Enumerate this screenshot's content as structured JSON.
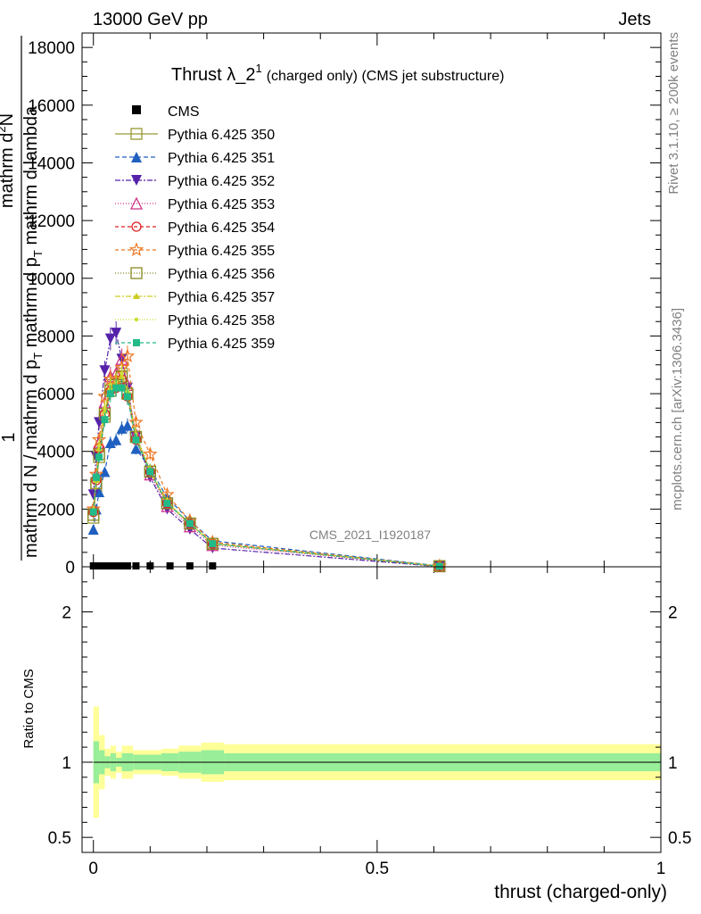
{
  "header": {
    "left": "13000 GeV pp",
    "right": "Jets"
  },
  "side_labels": {
    "rivet": "Rivet 3.1.10, ≥ 200k events",
    "mcplots": "mcplots.cern.ch [arXiv:1306.3436]"
  },
  "watermark": "CMS_2021_I1920187",
  "chart_data": [
    {
      "type": "line",
      "title": "Thrust λ_2",
      "title_sup": "1",
      "title_suffix": "(charged only) (CMS jet substructure)",
      "ylabel_parts": {
        "one": "1",
        "numerator_left": "mathrm d",
        "numerator_sup": "2",
        "numerator_right": "N",
        "denominator": "mathrm d N / mathrm d p",
        "denominator_sub": "T",
        "denominator_right": " mathrm d p",
        "denominator2_sub": "T",
        "denominator2_right": " mathrm d lambda"
      },
      "ylim": [
        0,
        18500
      ],
      "yticks": [
        0,
        2000,
        4000,
        6000,
        8000,
        10000,
        12000,
        14000,
        16000,
        18000
      ],
      "ytick_labels": [
        "0",
        "2000",
        "4000",
        "6000",
        "8000",
        "10000",
        "12000",
        "14000",
        "16000",
        "18000"
      ],
      "xlim": [
        -0.02,
        1.0
      ],
      "cms_points": {
        "x": [
          0.0,
          0.01,
          0.02,
          0.03,
          0.04,
          0.05,
          0.06,
          0.075,
          0.1,
          0.135,
          0.17,
          0.21
        ],
        "y": [
          0,
          0,
          0,
          0,
          0,
          0,
          0,
          0,
          0,
          0,
          0,
          0
        ]
      },
      "series": [
        {
          "name": "Pythia 6.425 350",
          "color": "#999933",
          "marker": "square-open",
          "dash": "",
          "x": [
            0.0,
            0.005,
            0.01,
            0.02,
            0.03,
            0.04,
            0.05,
            0.06,
            0.075,
            0.1,
            0.13,
            0.17,
            0.21,
            0.61
          ],
          "y": [
            1700,
            2800,
            3800,
            5200,
            6300,
            6400,
            6700,
            6000,
            4500,
            3300,
            2200,
            1500,
            800,
            20
          ]
        },
        {
          "name": "Pythia 6.425 351",
          "color": "#1f5fbf",
          "marker": "triangle-up",
          "dash": "5,3",
          "x": [
            0.0,
            0.005,
            0.01,
            0.02,
            0.03,
            0.04,
            0.05,
            0.06,
            0.075,
            0.1,
            0.13,
            0.17,
            0.21,
            0.61
          ],
          "y": [
            1300,
            2000,
            2600,
            3300,
            4300,
            4400,
            4800,
            4900,
            4100,
            3400,
            2400,
            1600,
            900,
            30
          ]
        },
        {
          "name": "Pythia 6.425 352",
          "color": "#5522aa",
          "marker": "triangle-down",
          "dash": "6,2,2,2",
          "x": [
            0.0,
            0.005,
            0.01,
            0.02,
            0.03,
            0.04,
            0.05,
            0.06,
            0.075,
            0.1,
            0.13,
            0.17,
            0.21,
            0.61
          ],
          "y": [
            2500,
            3800,
            5000,
            6800,
            7900,
            8100,
            7200,
            6200,
            4500,
            3100,
            2000,
            1300,
            650,
            10
          ]
        },
        {
          "name": "Pythia 6.425 353",
          "color": "#cc3388",
          "marker": "triangle-open",
          "dash": "1,2",
          "x": [
            0.0,
            0.005,
            0.01,
            0.02,
            0.03,
            0.04,
            0.05,
            0.06,
            0.075,
            0.1,
            0.13,
            0.17,
            0.21,
            0.61
          ],
          "y": [
            2000,
            3200,
            4300,
            5700,
            6600,
            6700,
            7200,
            6300,
            4600,
            3200,
            2100,
            1400,
            750,
            15
          ]
        },
        {
          "name": "Pythia 6.425 354",
          "color": "#dd2222",
          "marker": "circle-open",
          "dash": "4,3",
          "x": [
            0.0,
            0.005,
            0.01,
            0.02,
            0.03,
            0.04,
            0.05,
            0.06,
            0.075,
            0.1,
            0.13,
            0.17,
            0.21,
            0.61
          ],
          "y": [
            1900,
            3000,
            4100,
            5300,
            6100,
            6200,
            6500,
            5900,
            4400,
            3300,
            2200,
            1500,
            800,
            20
          ]
        },
        {
          "name": "Pythia 6.425 355",
          "color": "#ee7722",
          "marker": "star",
          "dash": "4,3",
          "x": [
            0.0,
            0.005,
            0.01,
            0.02,
            0.03,
            0.04,
            0.05,
            0.06,
            0.075,
            0.1,
            0.13,
            0.17,
            0.21,
            0.61
          ],
          "y": [
            2000,
            3200,
            4400,
            5900,
            6500,
            6500,
            6900,
            7300,
            5000,
            3900,
            2500,
            1600,
            850,
            25
          ]
        },
        {
          "name": "Pythia 6.425 356",
          "color": "#888822",
          "marker": "square-open",
          "dash": "1,2",
          "x": [
            0.0,
            0.005,
            0.01,
            0.02,
            0.03,
            0.04,
            0.05,
            0.06,
            0.075,
            0.1,
            0.13,
            0.17,
            0.21,
            0.61
          ],
          "y": [
            1800,
            2900,
            3900,
            5300,
            6100,
            6300,
            6600,
            6000,
            4500,
            3300,
            2200,
            1500,
            800,
            20
          ]
        },
        {
          "name": "Pythia 6.425 357",
          "color": "#cccc22",
          "marker": "tri-dot",
          "dash": "6,2,2,2",
          "x": [
            0.0,
            0.005,
            0.01,
            0.02,
            0.03,
            0.04,
            0.05,
            0.06,
            0.075,
            0.1,
            0.13,
            0.17,
            0.21,
            0.61
          ],
          "y": [
            1900,
            3000,
            4100,
            5400,
            6200,
            6300,
            6600,
            6100,
            4500,
            3300,
            2200,
            1500,
            800,
            20
          ]
        },
        {
          "name": "Pythia 6.425 358",
          "color": "#ccdd33",
          "marker": "dot",
          "dash": "1,2",
          "x": [
            0.0,
            0.005,
            0.01,
            0.02,
            0.03,
            0.04,
            0.05,
            0.06,
            0.075,
            0.1,
            0.13,
            0.17,
            0.21,
            0.61
          ],
          "y": [
            2000,
            3100,
            4200,
            5500,
            6300,
            6400,
            6700,
            6100,
            4600,
            3400,
            2300,
            1500,
            800,
            20
          ]
        },
        {
          "name": "Pythia 6.425 359",
          "color": "#22bb88",
          "marker": "square",
          "dash": "4,3",
          "x": [
            0.0,
            0.005,
            0.01,
            0.02,
            0.03,
            0.04,
            0.05,
            0.06,
            0.075,
            0.1,
            0.13,
            0.17,
            0.21,
            0.61
          ],
          "y": [
            1900,
            3100,
            3800,
            5100,
            6000,
            6200,
            6200,
            5900,
            4400,
            3300,
            2200,
            1500,
            800,
            20
          ]
        }
      ]
    },
    {
      "type": "area",
      "ylabel": "Ratio to CMS",
      "xlabel": "thrust (charged-only)",
      "ylim": [
        0.4,
        2.3
      ],
      "yticks": [
        0.5,
        1,
        2
      ],
      "ytick_labels": [
        "0.5",
        "1",
        "2"
      ],
      "xlim": [
        -0.02,
        1.0
      ],
      "xticks": [
        0,
        0.5,
        1
      ],
      "xtick_labels": [
        "0",
        "0.5",
        "1"
      ],
      "band_colors": {
        "inner": "#99ee99",
        "outer": "#ffff99"
      },
      "bins": [
        {
          "x0": 0.0,
          "x1": 0.01,
          "inner": 0.14,
          "outer": 0.37
        },
        {
          "x0": 0.01,
          "x1": 0.02,
          "inner": 0.08,
          "outer": 0.18
        },
        {
          "x0": 0.02,
          "x1": 0.03,
          "inner": 0.04,
          "outer": 0.09
        },
        {
          "x0": 0.03,
          "x1": 0.04,
          "inner": 0.06,
          "outer": 0.11
        },
        {
          "x0": 0.04,
          "x1": 0.05,
          "inner": 0.03,
          "outer": 0.07
        },
        {
          "x0": 0.05,
          "x1": 0.07,
          "inner": 0.06,
          "outer": 0.11
        },
        {
          "x0": 0.07,
          "x1": 0.09,
          "inner": 0.05,
          "outer": 0.08
        },
        {
          "x0": 0.09,
          "x1": 0.12,
          "inner": 0.05,
          "outer": 0.08
        },
        {
          "x0": 0.12,
          "x1": 0.15,
          "inner": 0.06,
          "outer": 0.09
        },
        {
          "x0": 0.15,
          "x1": 0.19,
          "inner": 0.07,
          "outer": 0.11
        },
        {
          "x0": 0.19,
          "x1": 0.23,
          "inner": 0.08,
          "outer": 0.13
        },
        {
          "x0": 0.23,
          "x1": 1.0,
          "inner": 0.06,
          "outer": 0.12
        }
      ]
    }
  ]
}
